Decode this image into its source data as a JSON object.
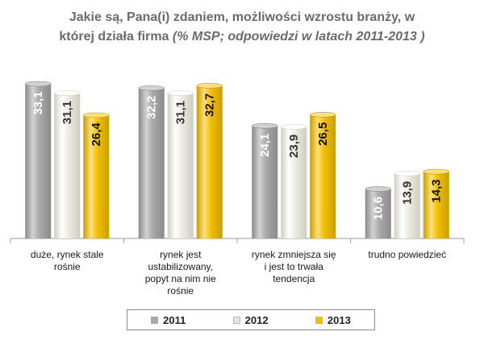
{
  "title": {
    "line1": "Jakie są, Pana(i) zdaniem, możliwości wzrostu branży, w",
    "line2_main": "której działa firma ",
    "line2_sub": "(% MSP; odpowiedzi w latach 2011-2013 )"
  },
  "colors": {
    "2011": "#a9a9a9",
    "2012": "#ecebe3",
    "2013": "#f2c000"
  },
  "chart_data": {
    "type": "bar",
    "title": "Jakie są, Pana(i) zdaniem, możliwości wzrostu branży, w której działa firma (% MSP; odpowiedzi w latach 2011-2013 )",
    "categories": [
      [
        "duże, rynek stale",
        "rośnie"
      ],
      [
        "rynek jest",
        "ustabilizowany,",
        "popyt na nim nie",
        "rośnie"
      ],
      [
        "rynek zmniejsza się",
        "i jest to trwała",
        "tendencja"
      ],
      [
        "trudno powiedzieć"
      ]
    ],
    "series": [
      {
        "name": "2011",
        "values": [
          33.1,
          32.2,
          24.1,
          10.6
        ],
        "labels": [
          "33,1",
          "32,2",
          "24,1",
          "10,6"
        ]
      },
      {
        "name": "2012",
        "values": [
          31.1,
          31.1,
          23.9,
          13.9
        ],
        "labels": [
          "31,1",
          "31,1",
          "23,9",
          "13,9"
        ]
      },
      {
        "name": "2013",
        "values": [
          26.4,
          32.7,
          26.5,
          14.3
        ],
        "labels": [
          "26,4",
          "32,7",
          "26,5",
          "14,3"
        ]
      }
    ],
    "ylim": [
      0,
      35
    ],
    "grid": false,
    "legend_position": "bottom"
  }
}
